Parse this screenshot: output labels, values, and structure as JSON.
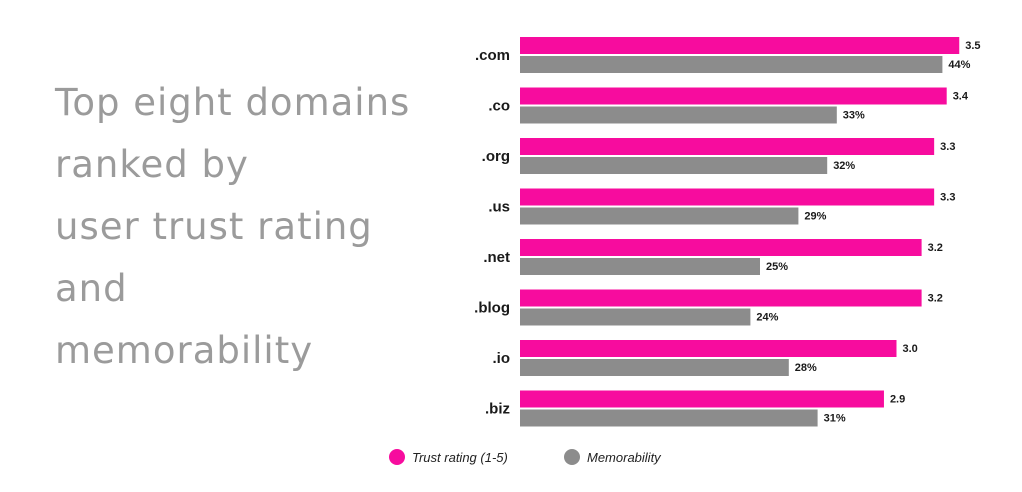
{
  "title_lines": [
    "Top eight domains",
    "ranked by",
    "user trust rating",
    "and",
    "memorability"
  ],
  "colors": {
    "trust": "#f70c9e",
    "memorability": "#8c8c8c",
    "title": "#9b9b9b"
  },
  "chart_data": {
    "type": "bar",
    "orientation": "horizontal",
    "title": "Top eight domains ranked by user trust rating and memorability",
    "categories": [
      ".com",
      ".co",
      ".org",
      ".us",
      ".net",
      ".blog",
      ".io",
      ".biz"
    ],
    "series": [
      {
        "name": "Trust rating (1-5)",
        "values": [
          3.5,
          3.4,
          3.3,
          3.3,
          3.2,
          3.2,
          3.0,
          2.9
        ],
        "labels": [
          "3.5",
          "3.4",
          "3.3",
          "3.3",
          "3.2",
          "3.2",
          "3.0",
          "2.9"
        ],
        "max": 5
      },
      {
        "name": "Memorability",
        "values": [
          44,
          33,
          32,
          29,
          25,
          24,
          28,
          31
        ],
        "labels": [
          "44%",
          "33%",
          "32%",
          "29%",
          "25%",
          "24%",
          "28%",
          "31%"
        ],
        "unit": "%"
      }
    ],
    "legend_position": "bottom"
  }
}
